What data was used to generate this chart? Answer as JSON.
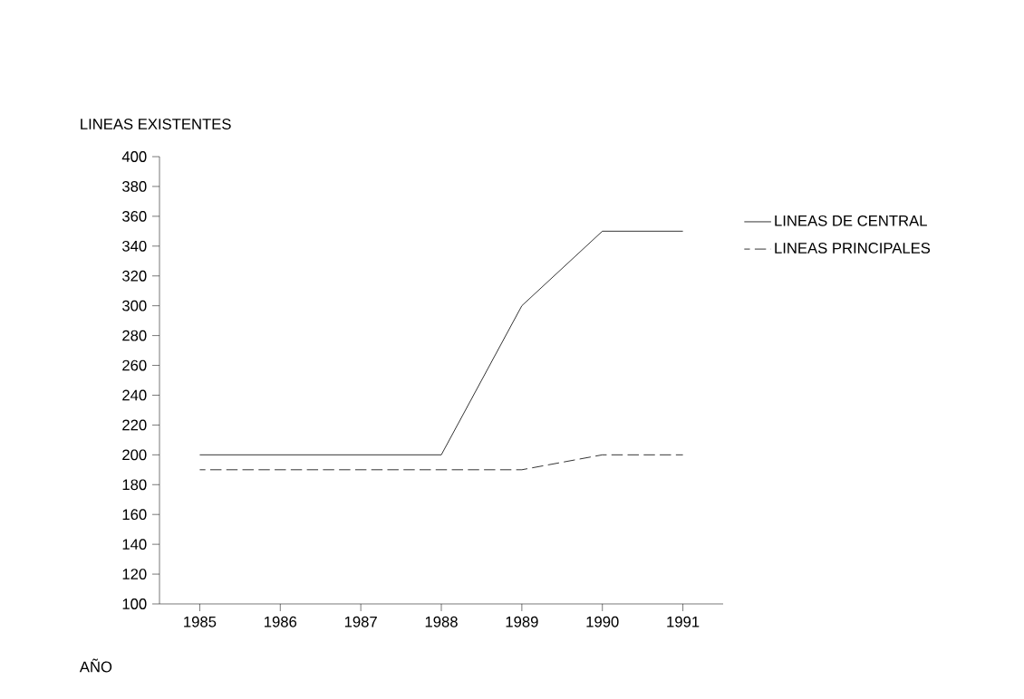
{
  "chart_data": {
    "type": "line",
    "xlabel": "AÑO",
    "ylabel": "LINEAS EXISTENTES",
    "x": [
      1985,
      1986,
      1987,
      1988,
      1989,
      1990,
      1991
    ],
    "series": [
      {
        "name": "LINEAS DE CENTRAL",
        "color": "#000000",
        "line_style": "solid",
        "values": [
          200,
          200,
          200,
          200,
          300,
          350,
          350
        ]
      },
      {
        "name": "LINEAS PRINCIPALES",
        "color": "#000000",
        "line_style": "dashed",
        "values": [
          190,
          190,
          190,
          190,
          190,
          200,
          200
        ]
      }
    ],
    "xlim": [
      1984.5,
      1991.5
    ],
    "ylim": [
      100,
      400
    ],
    "xticks": [
      1985,
      1986,
      1987,
      1988,
      1989,
      1990,
      1991
    ],
    "yticks": [
      100,
      120,
      140,
      160,
      180,
      200,
      220,
      240,
      260,
      280,
      300,
      320,
      340,
      360,
      380,
      400
    ],
    "grid": false,
    "legend": "right",
    "marker": "none"
  }
}
